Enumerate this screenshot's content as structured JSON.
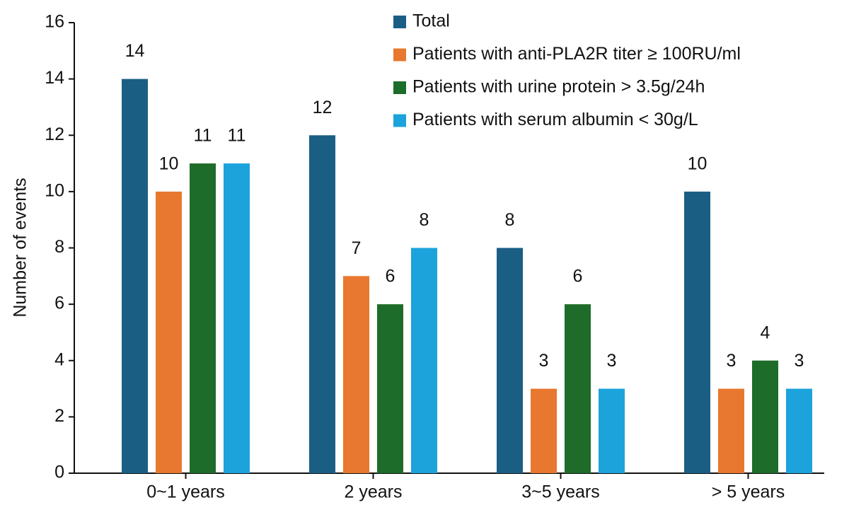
{
  "chart_data": {
    "type": "bar",
    "y_label": "Number of events",
    "categories": [
      "0~1 years",
      "2 years",
      "3~5 years",
      "> 5 years"
    ],
    "series": [
      {
        "name": "Total",
        "color": "#1b5e84",
        "values": [
          14,
          12,
          8,
          10
        ]
      },
      {
        "name": "Patients with anti-PLA2R titer ≥ 100RU/ml",
        "color": "#e8782f",
        "values": [
          10,
          7,
          3,
          3
        ]
      },
      {
        "name": "Patients with urine protein > 3.5g/24h",
        "color": "#1e6c29",
        "values": [
          11,
          6,
          6,
          4
        ]
      },
      {
        "name": "Patients with serum albumin < 30g/L",
        "color": "#1ca3dc",
        "values": [
          11,
          8,
          3,
          3
        ]
      }
    ],
    "ylim": [
      0,
      16
    ],
    "yticks": [
      0,
      2,
      4,
      6,
      8,
      10,
      12,
      14,
      16
    ],
    "grid": false,
    "legend": "top-right"
  }
}
